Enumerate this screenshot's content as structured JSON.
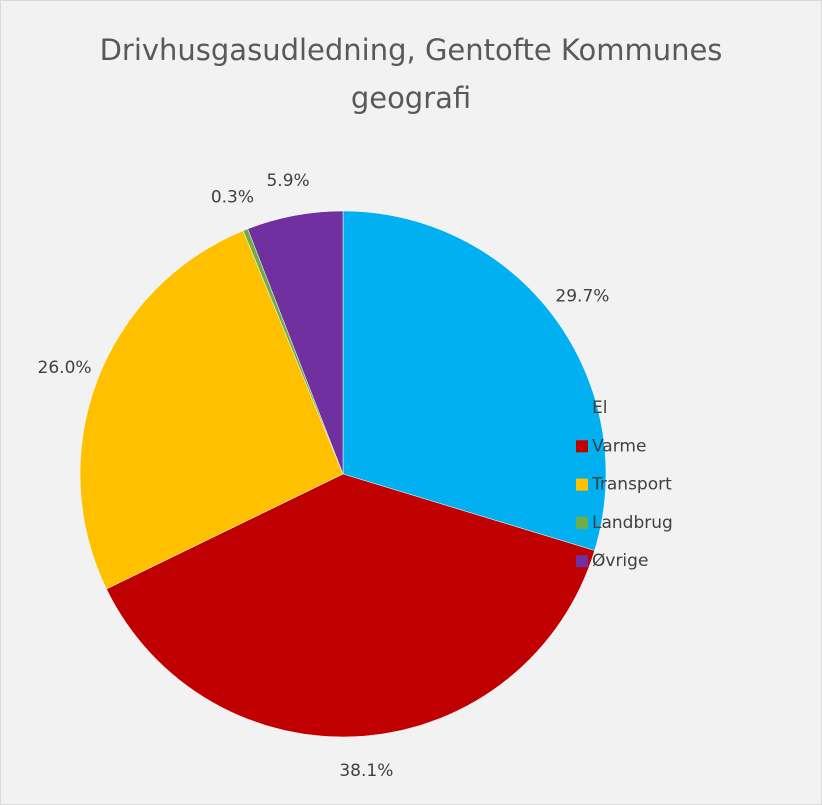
{
  "chart_data": {
    "type": "pie",
    "title": "Drivhusgasudledning, Gentofte Kommunes geografi",
    "categories": [
      "El",
      "Varme",
      "Transport",
      "Landbrug",
      "Øvrige"
    ],
    "values": [
      29.7,
      38.1,
      26.0,
      0.3,
      5.9
    ],
    "value_labels": [
      "29.7%",
      "38.1%",
      "26.0%",
      "0.3%",
      "5.9%"
    ],
    "colors": [
      "#00b0f0",
      "#c00000",
      "#ffc000",
      "#70ad47",
      "#7030a0"
    ],
    "legend": "right"
  }
}
